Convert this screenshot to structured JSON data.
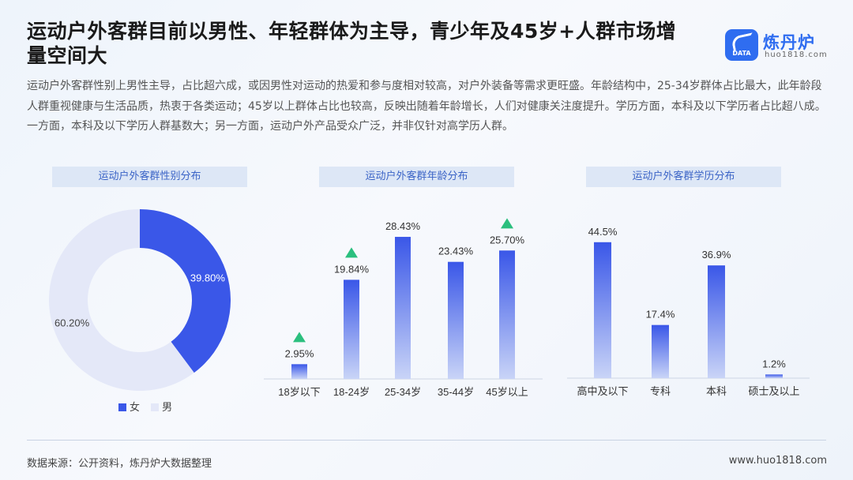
{
  "title": "运动户外客群目前以男性、年轻群体为主导，青少年及45岁+人群市场增量空间大",
  "logo": {
    "name": "炼丹炉",
    "url": "huo1818.com",
    "mark_text": "DATA"
  },
  "description": "运动户外客群性别上男性主导，占比超六成，或因男性对运动的热爱和参与度相对较高，对户外装备等需求更旺盛。年龄结构中，25-34岁群体占比最大，此年龄段人群重视健康与生活品质，热衷于各类运动；45岁以上群体占比也较高，反映出随着年龄增长，人们对健康关注度提升。学历方面，本科及以下学历者占比超八成。一方面，本科及以下学历人群基数大；另一方面，运动户外产品受众广泛，并非仅针对高学历人群。",
  "footer": {
    "source": "数据来源：公开资料，炼丹炉大数据整理",
    "url": "www.huo1818.com"
  },
  "colors": {
    "accent": "#3a57e8",
    "light": "#e4e8f8",
    "up": "#2bbf7e"
  },
  "chart_data": [
    {
      "type": "pie",
      "title": "运动户外客群性别分布",
      "categories": [
        "女",
        "男"
      ],
      "values": [
        39.8,
        60.2
      ],
      "value_labels": [
        "39.80%",
        "60.20%"
      ],
      "colors": [
        "#3a57e8",
        "#e4e8f8"
      ],
      "legend_position": "bottom"
    },
    {
      "type": "bar",
      "title": "运动户外客群年龄分布",
      "categories": [
        "18岁以下",
        "18-24岁",
        "25-34岁",
        "35-44岁",
        "45岁以上"
      ],
      "values": [
        2.95,
        19.84,
        28.43,
        23.43,
        25.7
      ],
      "value_labels": [
        "2.95%",
        "19.84%",
        "28.43%",
        "23.43%",
        "25.70%"
      ],
      "markers": [
        "up",
        "up",
        null,
        null,
        "up"
      ]
    },
    {
      "type": "bar",
      "title": "运动户外客群学历分布",
      "categories": [
        "高中及以下",
        "专科",
        "本科",
        "硕士及以上"
      ],
      "values": [
        44.5,
        17.4,
        36.9,
        1.2
      ],
      "value_labels": [
        "44.5%",
        "17.4%",
        "36.9%",
        "1.2%"
      ]
    }
  ]
}
